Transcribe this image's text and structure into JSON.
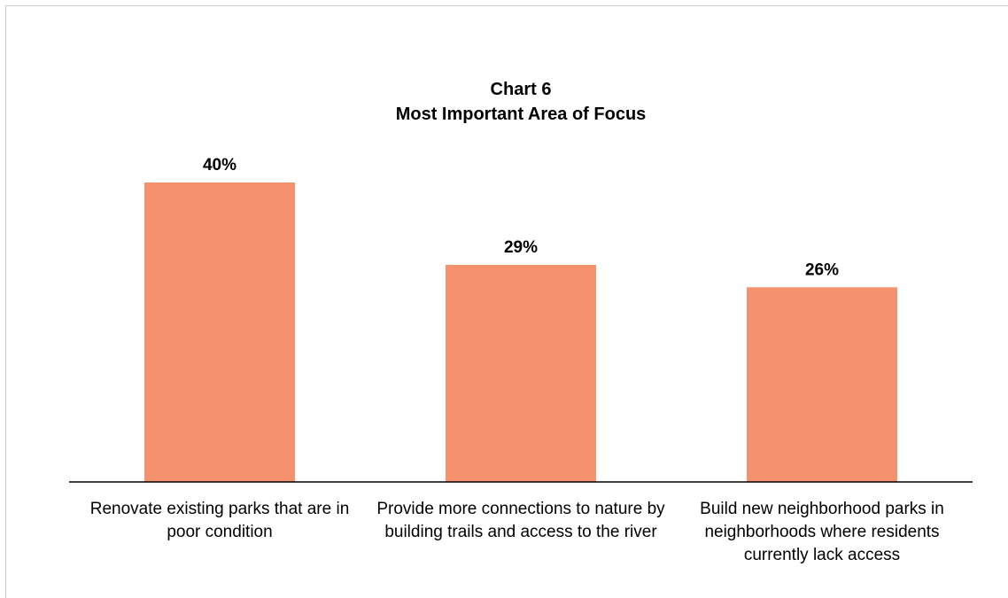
{
  "chart_data": {
    "type": "bar",
    "title": "Chart 6",
    "subtitle": "Most Important Area of Focus",
    "categories": [
      "Renovate existing parks that are in poor condition",
      "Provide more connections to nature by building trails and access to the river",
      "Build new neighborhood parks in neighborhoods where residents currently lack access"
    ],
    "values": [
      40,
      29,
      26
    ],
    "value_labels": [
      "40%",
      "29%",
      "26%"
    ],
    "color": "#f5916d"
  }
}
